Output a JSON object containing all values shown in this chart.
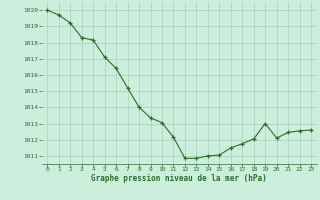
{
  "x": [
    0,
    1,
    2,
    3,
    4,
    5,
    6,
    7,
    8,
    9,
    10,
    11,
    12,
    13,
    14,
    15,
    16,
    17,
    18,
    19,
    20,
    21,
    22,
    23
  ],
  "y": [
    1020.0,
    1019.7,
    1019.2,
    1018.3,
    1018.15,
    1017.1,
    1016.4,
    1015.2,
    1014.0,
    1013.35,
    1013.05,
    1012.15,
    1010.85,
    1010.85,
    1011.0,
    1011.05,
    1011.5,
    1011.75,
    1012.05,
    1013.0,
    1012.1,
    1012.45,
    1012.55,
    1012.6
  ],
  "line_color": "#2a6e2a",
  "marker_color": "#2a6e2a",
  "bg_color": "#cceedd",
  "grid_color": "#aaccbb",
  "ylabel_ticks": [
    1011,
    1012,
    1013,
    1014,
    1015,
    1016,
    1017,
    1018,
    1019,
    1020
  ],
  "xlabel_ticks": [
    0,
    1,
    2,
    3,
    4,
    5,
    6,
    7,
    8,
    9,
    10,
    11,
    12,
    13,
    14,
    15,
    16,
    17,
    18,
    19,
    20,
    21,
    22,
    23
  ],
  "xlabel": "Graphe pression niveau de la mer (hPa)",
  "ylim": [
    1010.5,
    1020.5
  ],
  "xlim": [
    -0.5,
    23.5
  ],
  "label_color": "#2a6e2a"
}
